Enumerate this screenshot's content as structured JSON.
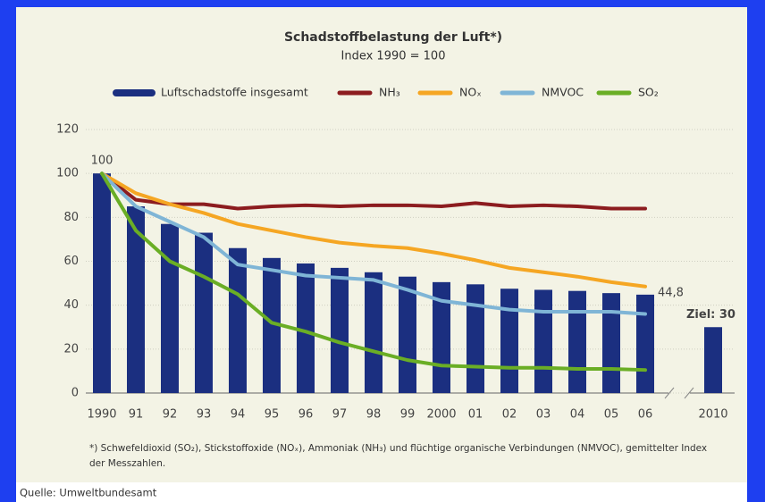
{
  "chart_data": {
    "type": "bar",
    "title": "Schadstoffbelastung der Luft*)",
    "subtitle": "Index 1990 = 100",
    "categories": [
      "1990",
      "91",
      "92",
      "93",
      "94",
      "95",
      "96",
      "97",
      "98",
      "99",
      "2000",
      "01",
      "02",
      "03",
      "04",
      "05",
      "06",
      null,
      "2010"
    ],
    "ylim": [
      0,
      120
    ],
    "yticks": [
      0,
      20,
      40,
      60,
      80,
      100,
      120
    ],
    "grid": true,
    "series": [
      {
        "name": "Luftschadstoffe insgesamt",
        "type": "bar",
        "color": "#1b2f80",
        "values": [
          100,
          85,
          77,
          73,
          66,
          61.5,
          59,
          57,
          55,
          53,
          50.5,
          49.5,
          47.5,
          47,
          46.5,
          45.5,
          44.8,
          null,
          30
        ],
        "value_labels": [
          "100",
          null,
          null,
          null,
          null,
          null,
          null,
          null,
          null,
          null,
          null,
          null,
          null,
          null,
          null,
          null,
          "44,8",
          null,
          "Ziel: 30"
        ]
      },
      {
        "name": "NH₃",
        "type": "line",
        "color": "#8c1c1f",
        "values": [
          100,
          88,
          86,
          86,
          84,
          85,
          85.5,
          85,
          85.5,
          85.5,
          85,
          86.5,
          85,
          85.5,
          85,
          84,
          84,
          null,
          null
        ]
      },
      {
        "name": "NOₓ",
        "type": "line",
        "color": "#f5a623",
        "values": [
          100,
          91,
          86,
          82,
          77,
          74,
          71,
          68.5,
          67,
          66,
          63.5,
          60.5,
          57,
          55,
          53,
          50.5,
          48.5,
          null,
          null
        ]
      },
      {
        "name": "NMVOC",
        "type": "line",
        "color": "#7fb5d6",
        "values": [
          100,
          85,
          78,
          71,
          58.5,
          56,
          53.5,
          52.5,
          51.5,
          47,
          42,
          40,
          38,
          37,
          37,
          37,
          36,
          null,
          null
        ]
      },
      {
        "name": "SO₂",
        "type": "line",
        "color": "#6aae25",
        "values": [
          100,
          74,
          60,
          53,
          45,
          32,
          28,
          23,
          19,
          15,
          12.5,
          12,
          11.5,
          11.5,
          11,
          11,
          10.5,
          null,
          null
        ]
      }
    ],
    "footnote": [
      "*) Schwefeldioxid (SO₂), Stickstoffoxide (NOₓ), Ammoniak (NH₃) und flüchtige organische Verbindungen (NMVOC), gemittelter Index",
      "der Messzahlen."
    ],
    "source": "Quelle: Umweltbundesamt"
  }
}
